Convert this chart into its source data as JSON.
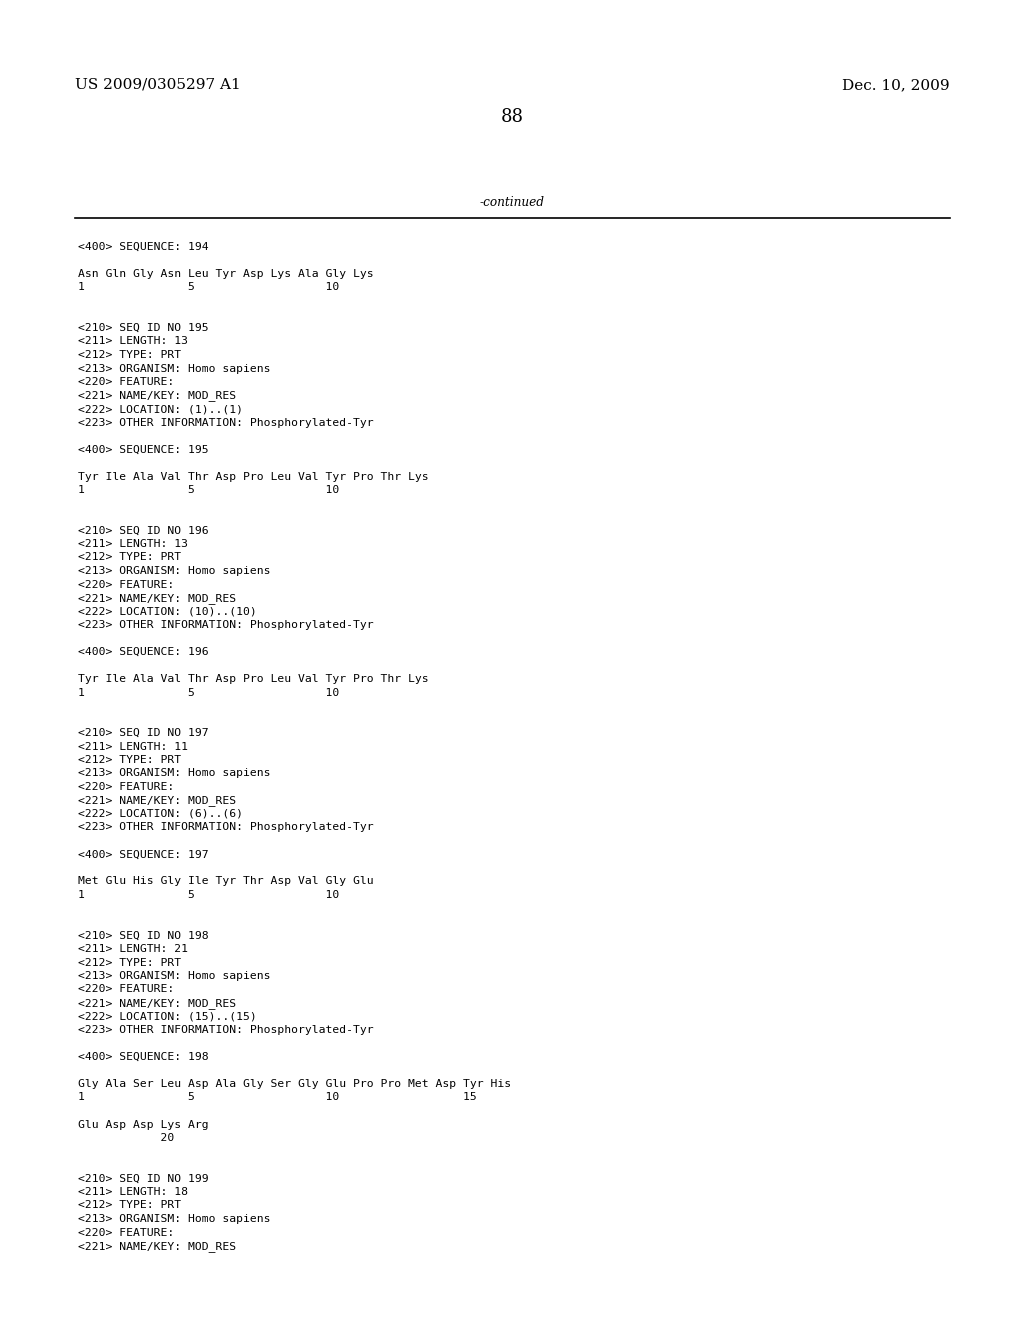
{
  "header_left": "US 2009/0305297 A1",
  "header_right": "Dec. 10, 2009",
  "page_number": "88",
  "continued_text": "-continued",
  "background_color": "#ffffff",
  "text_color": "#000000",
  "font_size_header": 11.0,
  "font_size_page_num": 13.0,
  "font_size_body": 8.2,
  "lines": [
    "<400> SEQUENCE: 194",
    "",
    "Asn Gln Gly Asn Leu Tyr Asp Lys Ala Gly Lys",
    "1               5                   10",
    "",
    "",
    "<210> SEQ ID NO 195",
    "<211> LENGTH: 13",
    "<212> TYPE: PRT",
    "<213> ORGANISM: Homo sapiens",
    "<220> FEATURE:",
    "<221> NAME/KEY: MOD_RES",
    "<222> LOCATION: (1)..(1)",
    "<223> OTHER INFORMATION: Phosphorylated-Tyr",
    "",
    "<400> SEQUENCE: 195",
    "",
    "Tyr Ile Ala Val Thr Asp Pro Leu Val Tyr Pro Thr Lys",
    "1               5                   10",
    "",
    "",
    "<210> SEQ ID NO 196",
    "<211> LENGTH: 13",
    "<212> TYPE: PRT",
    "<213> ORGANISM: Homo sapiens",
    "<220> FEATURE:",
    "<221> NAME/KEY: MOD_RES",
    "<222> LOCATION: (10)..(10)",
    "<223> OTHER INFORMATION: Phosphorylated-Tyr",
    "",
    "<400> SEQUENCE: 196",
    "",
    "Tyr Ile Ala Val Thr Asp Pro Leu Val Tyr Pro Thr Lys",
    "1               5                   10",
    "",
    "",
    "<210> SEQ ID NO 197",
    "<211> LENGTH: 11",
    "<212> TYPE: PRT",
    "<213> ORGANISM: Homo sapiens",
    "<220> FEATURE:",
    "<221> NAME/KEY: MOD_RES",
    "<222> LOCATION: (6)..(6)",
    "<223> OTHER INFORMATION: Phosphorylated-Tyr",
    "",
    "<400> SEQUENCE: 197",
    "",
    "Met Glu His Gly Ile Tyr Thr Asp Val Gly Glu",
    "1               5                   10",
    "",
    "",
    "<210> SEQ ID NO 198",
    "<211> LENGTH: 21",
    "<212> TYPE: PRT",
    "<213> ORGANISM: Homo sapiens",
    "<220> FEATURE:",
    "<221> NAME/KEY: MOD_RES",
    "<222> LOCATION: (15)..(15)",
    "<223> OTHER INFORMATION: Phosphorylated-Tyr",
    "",
    "<400> SEQUENCE: 198",
    "",
    "Gly Ala Ser Leu Asp Ala Gly Ser Gly Glu Pro Pro Met Asp Tyr His",
    "1               5                   10                  15",
    "",
    "Glu Asp Asp Lys Arg",
    "            20",
    "",
    "",
    "<210> SEQ ID NO 199",
    "<211> LENGTH: 18",
    "<212> TYPE: PRT",
    "<213> ORGANISM: Homo sapiens",
    "<220> FEATURE:",
    "<221> NAME/KEY: MOD_RES"
  ]
}
